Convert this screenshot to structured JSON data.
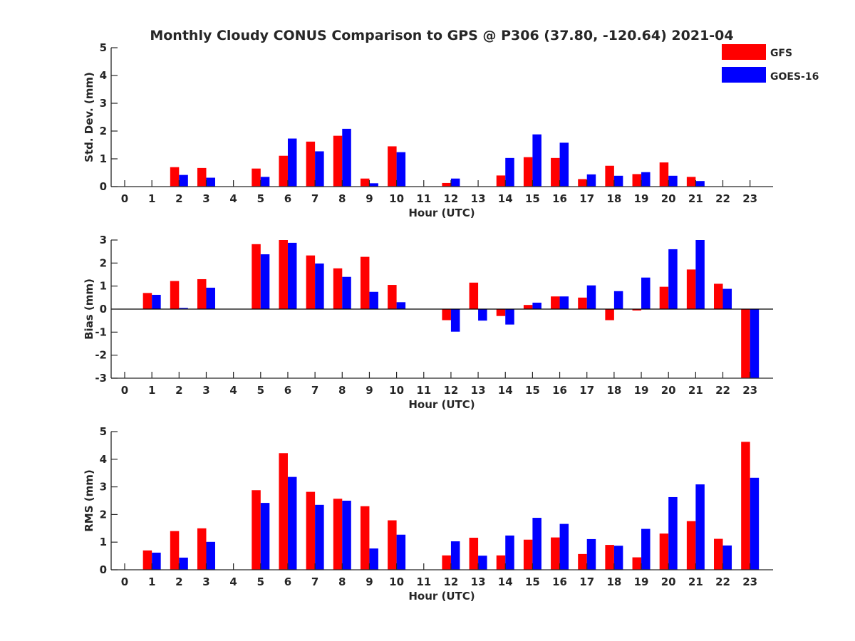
{
  "figure": {
    "title": "Monthly Cloudy CONUS Comparison to GPS @ P306 (37.80, -120.64) 2021-04"
  },
  "legend": {
    "placement": "top-right",
    "entries": [
      {
        "label": "GFS",
        "color": "#ff0000"
      },
      {
        "label": "GOES-16",
        "color": "#0000ff"
      }
    ]
  },
  "chart_data": [
    {
      "type": "bar",
      "xlabel": "Hour (UTC)",
      "ylabel": "Std. Dev. (mm)",
      "ylim": [
        0,
        5
      ],
      "yticks": [
        0,
        1,
        2,
        3,
        4,
        5
      ],
      "categories": [
        "0",
        "1",
        "2",
        "3",
        "4",
        "5",
        "6",
        "7",
        "8",
        "9",
        "10",
        "11",
        "12",
        "13",
        "14",
        "15",
        "16",
        "17",
        "18",
        "19",
        "20",
        "21",
        "22",
        "23"
      ],
      "series": [
        {
          "name": "GFS",
          "color": "#ff0000",
          "values": [
            null,
            null,
            0.7,
            0.67,
            null,
            0.65,
            1.11,
            1.62,
            1.83,
            0.29,
            1.45,
            null,
            0.13,
            null,
            0.4,
            1.06,
            1.03,
            0.27,
            0.75,
            0.45,
            0.87,
            0.35,
            null,
            null
          ]
        },
        {
          "name": "GOES-16",
          "color": "#0000ff",
          "values": [
            null,
            null,
            0.42,
            0.32,
            null,
            0.35,
            1.73,
            1.27,
            2.08,
            0.12,
            1.24,
            null,
            0.29,
            null,
            1.03,
            1.88,
            1.58,
            0.44,
            0.39,
            0.52,
            0.39,
            0.2,
            null,
            null
          ]
        }
      ]
    },
    {
      "type": "bar",
      "xlabel": "Hour (UTC)",
      "ylabel": "Bias (mm)",
      "ylim": [
        -3,
        3
      ],
      "yticks": [
        -3,
        -2,
        -1,
        0,
        1,
        2,
        3
      ],
      "zero_line": true,
      "categories": [
        "0",
        "1",
        "2",
        "3",
        "4",
        "5",
        "6",
        "7",
        "8",
        "9",
        "10",
        "11",
        "12",
        "13",
        "14",
        "15",
        "16",
        "17",
        "18",
        "19",
        "20",
        "21",
        "22",
        "23"
      ],
      "series": [
        {
          "name": "GFS",
          "color": "#ff0000",
          "values": [
            null,
            0.7,
            1.22,
            1.3,
            null,
            2.82,
            3.0,
            2.33,
            1.77,
            2.27,
            1.05,
            null,
            -0.48,
            1.15,
            -0.3,
            0.18,
            0.55,
            0.5,
            -0.48,
            -0.06,
            0.97,
            1.72,
            1.1,
            -3.0
          ]
        },
        {
          "name": "GOES-16",
          "color": "#0000ff",
          "values": [
            null,
            0.62,
            0.05,
            0.93,
            null,
            2.38,
            2.88,
            1.98,
            1.4,
            0.75,
            0.3,
            null,
            -0.98,
            -0.5,
            -0.67,
            0.28,
            0.55,
            1.03,
            0.78,
            1.37,
            2.6,
            3.0,
            0.88,
            -3.0
          ]
        }
      ]
    },
    {
      "type": "bar",
      "xlabel": "Hour (UTC)",
      "ylabel": "RMS (mm)",
      "ylim": [
        0,
        5
      ],
      "yticks": [
        0,
        1,
        2,
        3,
        4,
        5
      ],
      "categories": [
        "0",
        "1",
        "2",
        "3",
        "4",
        "5",
        "6",
        "7",
        "8",
        "9",
        "10",
        "11",
        "12",
        "13",
        "14",
        "15",
        "16",
        "17",
        "18",
        "19",
        "20",
        "21",
        "22",
        "23"
      ],
      "series": [
        {
          "name": "GFS",
          "color": "#ff0000",
          "values": [
            null,
            0.7,
            1.4,
            1.5,
            null,
            2.88,
            4.22,
            2.82,
            2.57,
            2.3,
            1.79,
            null,
            0.52,
            1.16,
            0.52,
            1.09,
            1.17,
            0.57,
            0.9,
            0.45,
            1.31,
            1.76,
            1.12,
            4.63
          ]
        },
        {
          "name": "GOES-16",
          "color": "#0000ff",
          "values": [
            null,
            0.62,
            0.44,
            1.01,
            null,
            2.42,
            3.36,
            2.35,
            2.5,
            0.77,
            1.27,
            null,
            1.03,
            0.51,
            1.24,
            1.88,
            1.66,
            1.11,
            0.87,
            1.48,
            2.63,
            3.09,
            0.88,
            3.33
          ]
        }
      ]
    }
  ]
}
